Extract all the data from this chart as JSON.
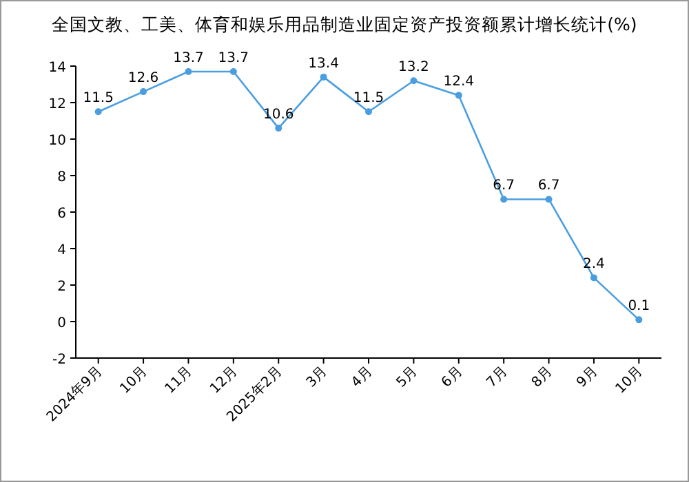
{
  "chart_data": {
    "type": "line",
    "title": "全国文教、工美、体育和娱乐用品制造业固定资产投资额累计增长统计(%)",
    "categories": [
      "2024年9月",
      "10月",
      "11月",
      "12月",
      "2025年2月",
      "3月",
      "4月",
      "5月",
      "6月",
      "7月",
      "8月",
      "9月",
      "10月"
    ],
    "values": [
      11.5,
      12.6,
      13.7,
      13.7,
      10.6,
      13.4,
      11.5,
      13.2,
      12.4,
      6.7,
      6.7,
      2.4,
      0.1
    ],
    "color": "#4a9ee0",
    "marker": "circle",
    "data_labels": true,
    "ylim": [
      -2,
      14
    ],
    "yticks": [
      -2,
      0,
      2,
      4,
      6,
      8,
      10,
      12,
      14
    ]
  }
}
